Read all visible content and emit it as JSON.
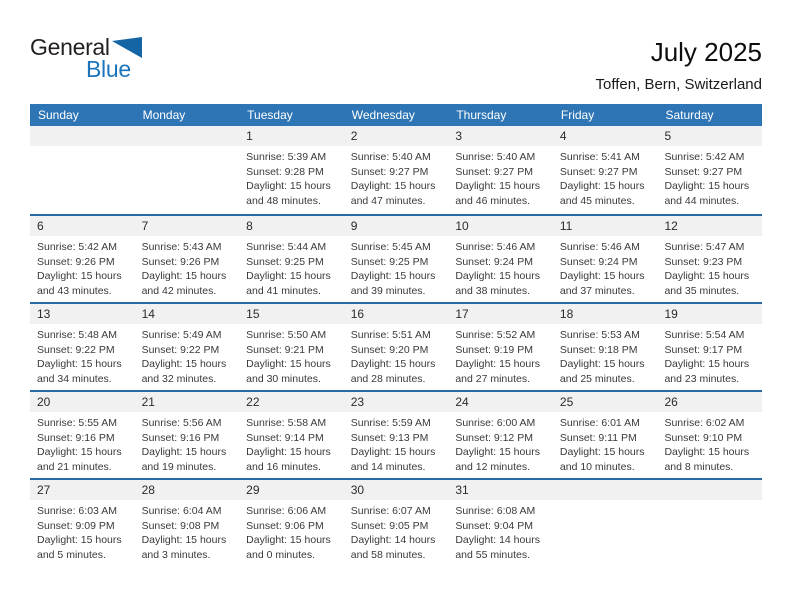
{
  "logo": {
    "part1": "General",
    "part2": "Blue"
  },
  "header": {
    "title": "July 2025",
    "subtitle": "Toffen, Bern, Switzerland"
  },
  "weekdays": [
    "Sunday",
    "Monday",
    "Tuesday",
    "Wednesday",
    "Thursday",
    "Friday",
    "Saturday"
  ],
  "labels": {
    "sunrise": "Sunrise:",
    "sunset": "Sunset:",
    "daylight": "Daylight:",
    "hours_word": "hours",
    "and_word": "and",
    "minutes_word": "minutes."
  },
  "colors": {
    "header_bg": "#2E75B6",
    "separator": "#2A6AA5",
    "band_bg": "#F1F1F1",
    "logo_blue": "#1B75BC",
    "logo_triangle": "#1565A5",
    "text_dark": "#3a3a3a"
  },
  "weeks": [
    [
      null,
      null,
      {
        "day": 1,
        "sunrise": "5:39 AM",
        "sunset": "9:28 PM",
        "hours": 15,
        "minutes": 48
      },
      {
        "day": 2,
        "sunrise": "5:40 AM",
        "sunset": "9:27 PM",
        "hours": 15,
        "minutes": 47
      },
      {
        "day": 3,
        "sunrise": "5:40 AM",
        "sunset": "9:27 PM",
        "hours": 15,
        "minutes": 46
      },
      {
        "day": 4,
        "sunrise": "5:41 AM",
        "sunset": "9:27 PM",
        "hours": 15,
        "minutes": 45
      },
      {
        "day": 5,
        "sunrise": "5:42 AM",
        "sunset": "9:27 PM",
        "hours": 15,
        "minutes": 44
      }
    ],
    [
      {
        "day": 6,
        "sunrise": "5:42 AM",
        "sunset": "9:26 PM",
        "hours": 15,
        "minutes": 43
      },
      {
        "day": 7,
        "sunrise": "5:43 AM",
        "sunset": "9:26 PM",
        "hours": 15,
        "minutes": 42
      },
      {
        "day": 8,
        "sunrise": "5:44 AM",
        "sunset": "9:25 PM",
        "hours": 15,
        "minutes": 41
      },
      {
        "day": 9,
        "sunrise": "5:45 AM",
        "sunset": "9:25 PM",
        "hours": 15,
        "minutes": 39
      },
      {
        "day": 10,
        "sunrise": "5:46 AM",
        "sunset": "9:24 PM",
        "hours": 15,
        "minutes": 38
      },
      {
        "day": 11,
        "sunrise": "5:46 AM",
        "sunset": "9:24 PM",
        "hours": 15,
        "minutes": 37
      },
      {
        "day": 12,
        "sunrise": "5:47 AM",
        "sunset": "9:23 PM",
        "hours": 15,
        "minutes": 35
      }
    ],
    [
      {
        "day": 13,
        "sunrise": "5:48 AM",
        "sunset": "9:22 PM",
        "hours": 15,
        "minutes": 34
      },
      {
        "day": 14,
        "sunrise": "5:49 AM",
        "sunset": "9:22 PM",
        "hours": 15,
        "minutes": 32
      },
      {
        "day": 15,
        "sunrise": "5:50 AM",
        "sunset": "9:21 PM",
        "hours": 15,
        "minutes": 30
      },
      {
        "day": 16,
        "sunrise": "5:51 AM",
        "sunset": "9:20 PM",
        "hours": 15,
        "minutes": 28
      },
      {
        "day": 17,
        "sunrise": "5:52 AM",
        "sunset": "9:19 PM",
        "hours": 15,
        "minutes": 27
      },
      {
        "day": 18,
        "sunrise": "5:53 AM",
        "sunset": "9:18 PM",
        "hours": 15,
        "minutes": 25
      },
      {
        "day": 19,
        "sunrise": "5:54 AM",
        "sunset": "9:17 PM",
        "hours": 15,
        "minutes": 23
      }
    ],
    [
      {
        "day": 20,
        "sunrise": "5:55 AM",
        "sunset": "9:16 PM",
        "hours": 15,
        "minutes": 21
      },
      {
        "day": 21,
        "sunrise": "5:56 AM",
        "sunset": "9:16 PM",
        "hours": 15,
        "minutes": 19
      },
      {
        "day": 22,
        "sunrise": "5:58 AM",
        "sunset": "9:14 PM",
        "hours": 15,
        "minutes": 16
      },
      {
        "day": 23,
        "sunrise": "5:59 AM",
        "sunset": "9:13 PM",
        "hours": 15,
        "minutes": 14
      },
      {
        "day": 24,
        "sunrise": "6:00 AM",
        "sunset": "9:12 PM",
        "hours": 15,
        "minutes": 12
      },
      {
        "day": 25,
        "sunrise": "6:01 AM",
        "sunset": "9:11 PM",
        "hours": 15,
        "minutes": 10
      },
      {
        "day": 26,
        "sunrise": "6:02 AM",
        "sunset": "9:10 PM",
        "hours": 15,
        "minutes": 8
      }
    ],
    [
      {
        "day": 27,
        "sunrise": "6:03 AM",
        "sunset": "9:09 PM",
        "hours": 15,
        "minutes": 5
      },
      {
        "day": 28,
        "sunrise": "6:04 AM",
        "sunset": "9:08 PM",
        "hours": 15,
        "minutes": 3
      },
      {
        "day": 29,
        "sunrise": "6:06 AM",
        "sunset": "9:06 PM",
        "hours": 15,
        "minutes": 0
      },
      {
        "day": 30,
        "sunrise": "6:07 AM",
        "sunset": "9:05 PM",
        "hours": 14,
        "minutes": 58
      },
      {
        "day": 31,
        "sunrise": "6:08 AM",
        "sunset": "9:04 PM",
        "hours": 14,
        "minutes": 55
      },
      null,
      null
    ]
  ]
}
